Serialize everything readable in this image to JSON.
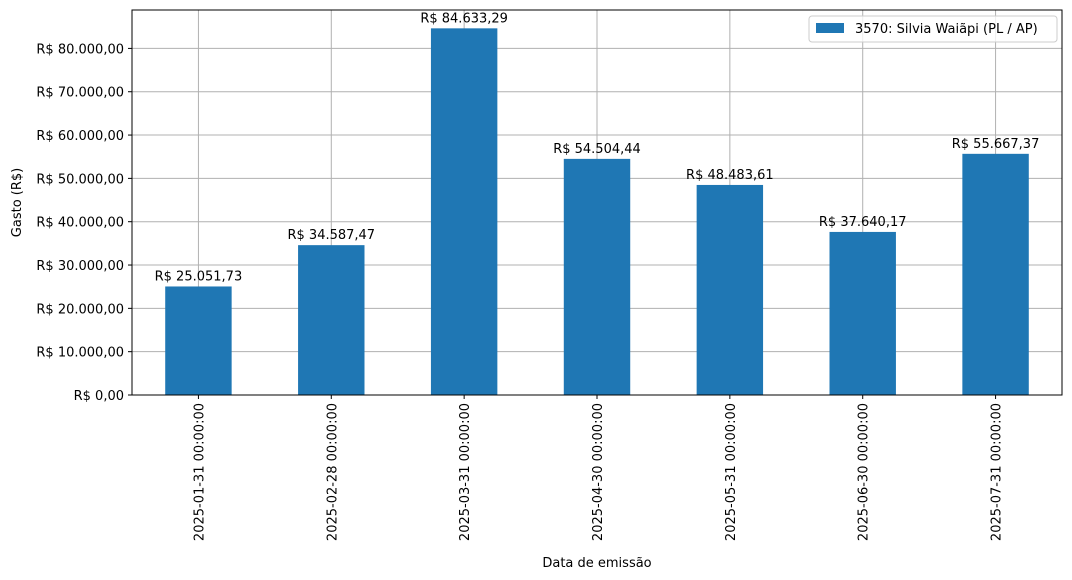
{
  "chart_data": {
    "type": "bar",
    "categories": [
      "2025-01-31 00:00:00",
      "2025-02-28 00:00:00",
      "2025-03-31 00:00:00",
      "2025-04-30 00:00:00",
      "2025-05-31 00:00:00",
      "2025-06-30 00:00:00",
      "2025-07-31 00:00:00"
    ],
    "series": [
      {
        "name": "3570: Silvia Waiãpi (PL / AP)",
        "color": "#1f77b4",
        "values": [
          25051.73,
          34587.47,
          84633.29,
          54504.44,
          48483.61,
          37640.17,
          55667.37
        ]
      }
    ],
    "data_labels": [
      "R$ 25.051,73",
      "R$ 34.587,47",
      "R$ 84.633,29",
      "R$ 54.504,44",
      "R$ 48.483,61",
      "R$ 37.640,17",
      "R$ 55.667,37"
    ],
    "xlabel": "Data de emissão",
    "ylabel": "Gasto (R$)",
    "ylim": [
      0,
      88866
    ],
    "yticks": [
      0,
      10000,
      20000,
      30000,
      40000,
      50000,
      60000,
      70000,
      80000
    ],
    "ytick_labels": [
      "R$ 0,00",
      "R$ 10.000,00",
      "R$ 20.000,00",
      "R$ 30.000,00",
      "R$ 40.000,00",
      "R$ 50.000,00",
      "R$ 60.000,00",
      "R$ 70.000,00",
      "R$ 80.000,00"
    ],
    "grid": true,
    "legend_position": "top-right"
  }
}
